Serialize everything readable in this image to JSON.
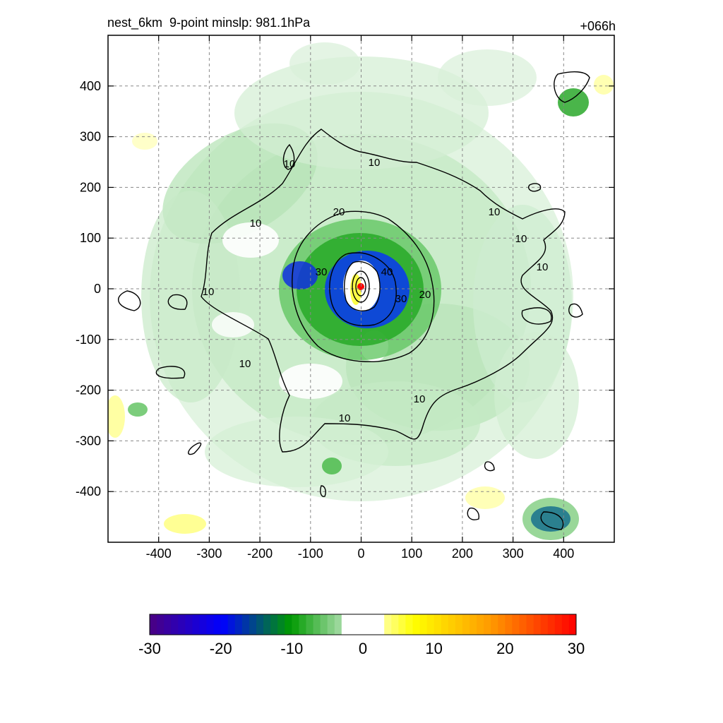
{
  "title": "nest_6km  9-point minslp: 981.1hPa",
  "time_label": "+066h",
  "chart_data": {
    "type": "heatmap",
    "xlim": [
      -500,
      500
    ],
    "ylim": [
      -500,
      500
    ],
    "x_ticks": [
      -400,
      -300,
      -200,
      -100,
      0,
      100,
      200,
      300,
      400
    ],
    "y_ticks": [
      400,
      300,
      200,
      100,
      0,
      -100,
      -200,
      -300,
      -400
    ],
    "grid": true,
    "colorbar": {
      "range": [
        -30,
        30
      ],
      "ticks": [
        "-30",
        "-20",
        "-10",
        "0",
        "10",
        "20",
        "30"
      ],
      "colors": [
        "#4b0082",
        "#0000ff",
        "#009a00",
        "#a6dca6",
        "#ffffff",
        "#ffff00",
        "#ff9900",
        "#ff0000"
      ]
    },
    "contour_labels": [
      "10",
      "10",
      "10",
      "10",
      "10",
      "10",
      "10",
      "10",
      "10",
      "10",
      "20",
      "20",
      "30",
      "30",
      "40"
    ],
    "center_marker_color": "#ff0000"
  }
}
